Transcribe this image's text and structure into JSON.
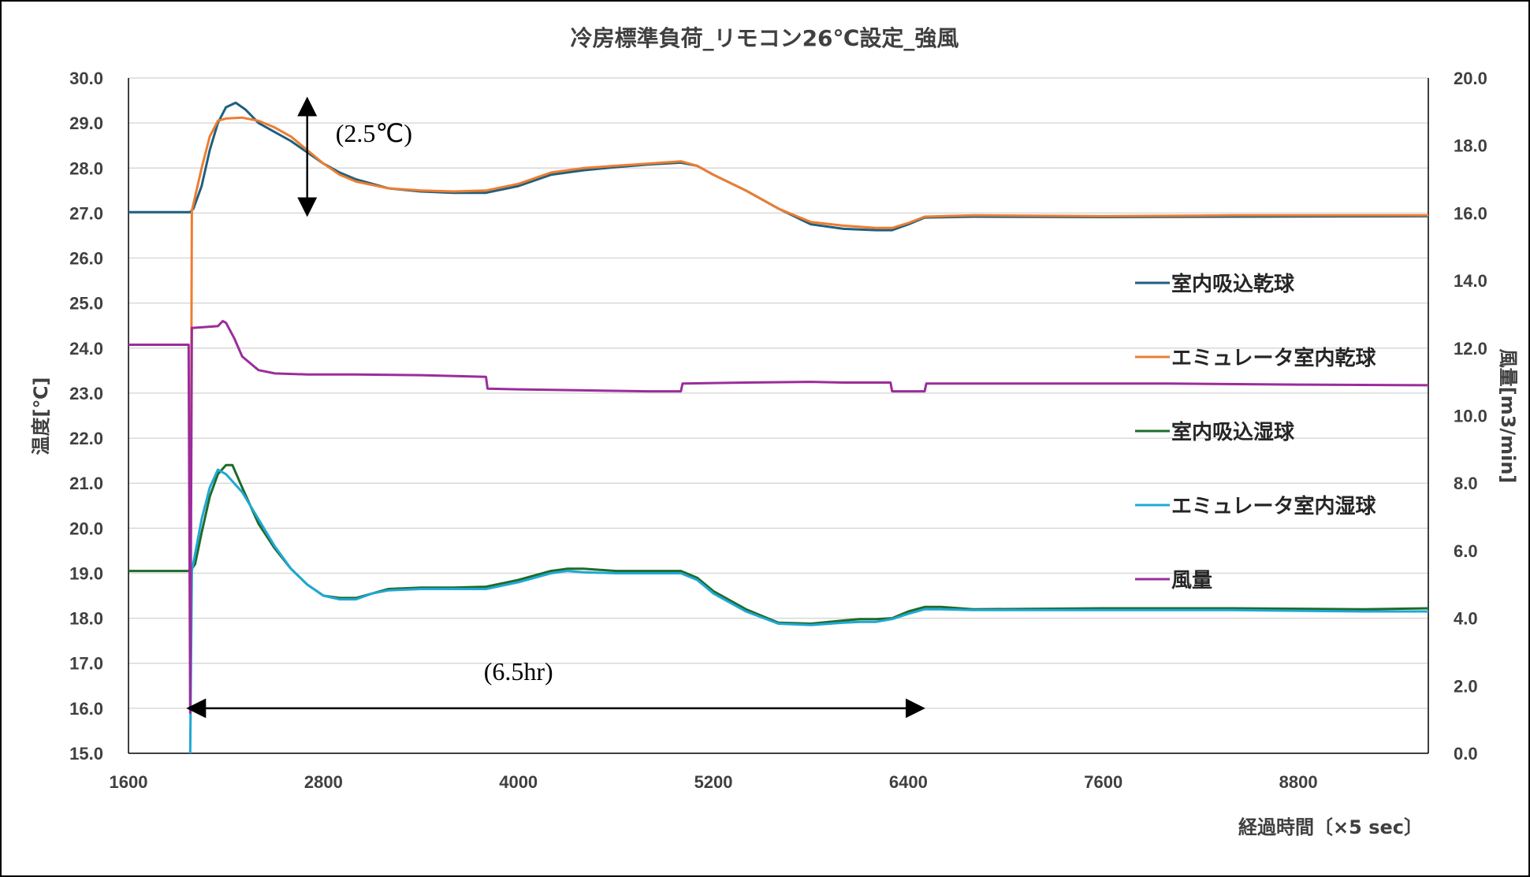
{
  "chart_data": {
    "type": "line",
    "title": "冷房標準負荷_リモコン26℃設定_強風",
    "xlabel": "経過時間〔×5 sec〕",
    "ylabel": "温度[℃]",
    "y2label": "風量[m3/min]",
    "xlim": [
      1600,
      9600
    ],
    "ylim": [
      15.0,
      30.0
    ],
    "y2lim": [
      0.0,
      20.0
    ],
    "x_ticks": [
      "1600",
      "2800",
      "4000",
      "5200",
      "6400",
      "7600",
      "8800"
    ],
    "y_ticks": [
      "15.0",
      "16.0",
      "17.0",
      "18.0",
      "19.0",
      "20.0",
      "21.0",
      "22.0",
      "23.0",
      "24.0",
      "25.0",
      "26.0",
      "27.0",
      "28.0",
      "29.0",
      "30.0"
    ],
    "y2_ticks": [
      "0.0",
      "2.0",
      "4.0",
      "6.0",
      "8.0",
      "10.0",
      "12.0",
      "14.0",
      "16.0",
      "18.0",
      "20.0"
    ],
    "grid": true,
    "legend_position": "right",
    "series": [
      {
        "name": "室内吸込乾球",
        "axis": "left",
        "color": "#1f5f7f",
        "points": [
          [
            1600,
            27.02
          ],
          [
            1980,
            27.02
          ],
          [
            2000,
            27.1
          ],
          [
            2050,
            27.6
          ],
          [
            2100,
            28.4
          ],
          [
            2150,
            29.0
          ],
          [
            2200,
            29.35
          ],
          [
            2260,
            29.45
          ],
          [
            2320,
            29.3
          ],
          [
            2400,
            29.0
          ],
          [
            2500,
            28.8
          ],
          [
            2600,
            28.6
          ],
          [
            2700,
            28.35
          ],
          [
            2800,
            28.1
          ],
          [
            2900,
            27.9
          ],
          [
            3000,
            27.75
          ],
          [
            3200,
            27.55
          ],
          [
            3400,
            27.48
          ],
          [
            3600,
            27.45
          ],
          [
            3800,
            27.45
          ],
          [
            4000,
            27.6
          ],
          [
            4200,
            27.85
          ],
          [
            4400,
            27.95
          ],
          [
            4600,
            28.02
          ],
          [
            4800,
            28.08
          ],
          [
            5000,
            28.12
          ],
          [
            5100,
            28.05
          ],
          [
            5200,
            27.85
          ],
          [
            5400,
            27.5
          ],
          [
            5600,
            27.1
          ],
          [
            5800,
            26.75
          ],
          [
            6000,
            26.65
          ],
          [
            6200,
            26.62
          ],
          [
            6300,
            26.62
          ],
          [
            6400,
            26.75
          ],
          [
            6500,
            26.9
          ],
          [
            6800,
            26.92
          ],
          [
            7600,
            26.91
          ],
          [
            8400,
            26.92
          ],
          [
            9600,
            26.93
          ]
        ]
      },
      {
        "name": "エミュレータ室内乾球",
        "axis": "left",
        "color": "#ed7d31",
        "points": [
          [
            1980,
            16.0
          ],
          [
            1990,
            27.05
          ],
          [
            2050,
            28.0
          ],
          [
            2100,
            28.7
          ],
          [
            2150,
            29.05
          ],
          [
            2200,
            29.1
          ],
          [
            2300,
            29.12
          ],
          [
            2400,
            29.05
          ],
          [
            2500,
            28.9
          ],
          [
            2600,
            28.7
          ],
          [
            2700,
            28.4
          ],
          [
            2800,
            28.1
          ],
          [
            2900,
            27.85
          ],
          [
            3000,
            27.7
          ],
          [
            3200,
            27.55
          ],
          [
            3400,
            27.5
          ],
          [
            3600,
            27.48
          ],
          [
            3800,
            27.5
          ],
          [
            4000,
            27.65
          ],
          [
            4200,
            27.9
          ],
          [
            4400,
            28.0
          ],
          [
            4600,
            28.05
          ],
          [
            4800,
            28.1
          ],
          [
            5000,
            28.15
          ],
          [
            5100,
            28.05
          ],
          [
            5200,
            27.85
          ],
          [
            5400,
            27.5
          ],
          [
            5600,
            27.1
          ],
          [
            5800,
            26.8
          ],
          [
            6000,
            26.72
          ],
          [
            6200,
            26.67
          ],
          [
            6300,
            26.67
          ],
          [
            6400,
            26.78
          ],
          [
            6500,
            26.92
          ],
          [
            6800,
            26.95
          ],
          [
            7600,
            26.93
          ],
          [
            8400,
            26.95
          ],
          [
            9600,
            26.95
          ]
        ]
      },
      {
        "name": "室内吸込湿球",
        "axis": "left",
        "color": "#1e6b2a",
        "points": [
          [
            1600,
            19.05
          ],
          [
            1980,
            19.05
          ],
          [
            2010,
            19.2
          ],
          [
            2050,
            19.9
          ],
          [
            2100,
            20.7
          ],
          [
            2150,
            21.2
          ],
          [
            2200,
            21.4
          ],
          [
            2240,
            21.4
          ],
          [
            2300,
            20.9
          ],
          [
            2400,
            20.1
          ],
          [
            2500,
            19.55
          ],
          [
            2600,
            19.1
          ],
          [
            2700,
            18.75
          ],
          [
            2800,
            18.5
          ],
          [
            2900,
            18.45
          ],
          [
            3000,
            18.45
          ],
          [
            3100,
            18.55
          ],
          [
            3200,
            18.65
          ],
          [
            3400,
            18.68
          ],
          [
            3600,
            18.68
          ],
          [
            3800,
            18.7
          ],
          [
            4000,
            18.85
          ],
          [
            4200,
            19.05
          ],
          [
            4300,
            19.1
          ],
          [
            4400,
            19.1
          ],
          [
            4600,
            19.05
          ],
          [
            4800,
            19.05
          ],
          [
            5000,
            19.05
          ],
          [
            5100,
            18.9
          ],
          [
            5200,
            18.6
          ],
          [
            5400,
            18.2
          ],
          [
            5600,
            17.9
          ],
          [
            5800,
            17.88
          ],
          [
            6000,
            17.95
          ],
          [
            6100,
            17.98
          ],
          [
            6200,
            17.98
          ],
          [
            6300,
            18.0
          ],
          [
            6400,
            18.15
          ],
          [
            6500,
            18.25
          ],
          [
            6600,
            18.25
          ],
          [
            6800,
            18.2
          ],
          [
            7600,
            18.22
          ],
          [
            8400,
            18.22
          ],
          [
            9200,
            18.2
          ],
          [
            9600,
            18.22
          ]
        ]
      },
      {
        "name": "エミュレータ室内湿球",
        "axis": "left",
        "color": "#1fa8d4",
        "points": [
          [
            1980,
            15.0
          ],
          [
            1990,
            19.05
          ],
          [
            2050,
            20.2
          ],
          [
            2100,
            20.9
          ],
          [
            2150,
            21.3
          ],
          [
            2200,
            21.2
          ],
          [
            2300,
            20.8
          ],
          [
            2400,
            20.2
          ],
          [
            2500,
            19.6
          ],
          [
            2600,
            19.1
          ],
          [
            2700,
            18.75
          ],
          [
            2800,
            18.5
          ],
          [
            2900,
            18.42
          ],
          [
            3000,
            18.42
          ],
          [
            3100,
            18.55
          ],
          [
            3200,
            18.62
          ],
          [
            3400,
            18.65
          ],
          [
            3600,
            18.65
          ],
          [
            3800,
            18.65
          ],
          [
            4000,
            18.8
          ],
          [
            4200,
            19.0
          ],
          [
            4300,
            19.05
          ],
          [
            4400,
            19.02
          ],
          [
            4600,
            19.0
          ],
          [
            4800,
            19.0
          ],
          [
            5000,
            19.0
          ],
          [
            5100,
            18.85
          ],
          [
            5200,
            18.55
          ],
          [
            5400,
            18.15
          ],
          [
            5600,
            17.88
          ],
          [
            5800,
            17.85
          ],
          [
            6000,
            17.9
          ],
          [
            6100,
            17.92
          ],
          [
            6200,
            17.92
          ],
          [
            6300,
            17.98
          ],
          [
            6400,
            18.1
          ],
          [
            6500,
            18.2
          ],
          [
            6600,
            18.2
          ],
          [
            6800,
            18.18
          ],
          [
            7600,
            18.18
          ],
          [
            8400,
            18.18
          ],
          [
            9200,
            18.15
          ],
          [
            9600,
            18.15
          ]
        ]
      },
      {
        "name": "風量",
        "axis": "right",
        "color": "#9b2d9b",
        "points": [
          [
            1600,
            12.1
          ],
          [
            1970,
            12.1
          ],
          [
            1980,
            1.2
          ],
          [
            1990,
            12.6
          ],
          [
            2000,
            12.6
          ],
          [
            2150,
            12.65
          ],
          [
            2180,
            12.8
          ],
          [
            2200,
            12.75
          ],
          [
            2250,
            12.3
          ],
          [
            2300,
            11.75
          ],
          [
            2400,
            11.35
          ],
          [
            2500,
            11.25
          ],
          [
            2700,
            11.22
          ],
          [
            3000,
            11.22
          ],
          [
            3400,
            11.2
          ],
          [
            3800,
            11.15
          ],
          [
            3810,
            10.8
          ],
          [
            4000,
            10.78
          ],
          [
            4400,
            10.75
          ],
          [
            4800,
            10.72
          ],
          [
            5000,
            10.72
          ],
          [
            5010,
            10.95
          ],
          [
            5400,
            10.98
          ],
          [
            5800,
            11.0
          ],
          [
            6000,
            10.98
          ],
          [
            6290,
            10.98
          ],
          [
            6300,
            10.72
          ],
          [
            6500,
            10.72
          ],
          [
            6510,
            10.95
          ],
          [
            7200,
            10.95
          ],
          [
            8000,
            10.95
          ],
          [
            8800,
            10.92
          ],
          [
            9600,
            10.9
          ]
        ]
      }
    ],
    "annotations": [
      {
        "text": "(2.5℃)",
        "x": 2700,
        "y": 28.55
      },
      {
        "text": "(6.5hr)",
        "x": 1980,
        "y": 16.0
      }
    ]
  }
}
